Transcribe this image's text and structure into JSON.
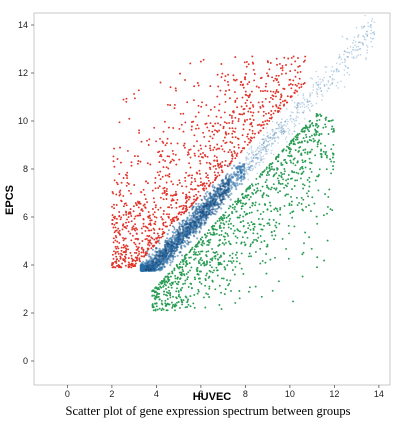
{
  "chart_data": {
    "type": "scatter",
    "title": "",
    "xlabel": "HUVEC",
    "ylabel": "EPCS",
    "xlim": [
      -1.5,
      14.5
    ],
    "ylim": [
      -1.0,
      14.5
    ],
    "xticks": [
      0,
      2,
      4,
      6,
      8,
      10,
      12,
      14
    ],
    "yticks": [
      0,
      2,
      4,
      6,
      8,
      10,
      12,
      14
    ],
    "grid": false,
    "legend": "none",
    "series": [
      {
        "color": "#e0352b",
        "description_points": [
          [
            2.0,
            3.95
          ],
          [
            2.5,
            5.5
          ],
          [
            3.0,
            7.2
          ],
          [
            3.5,
            8.6
          ],
          [
            3.6,
            10.0
          ],
          [
            4.5,
            11.5
          ],
          [
            5.0,
            11.9
          ],
          [
            6.0,
            11.4
          ],
          [
            7.0,
            12.0
          ],
          [
            8.7,
            12.5
          ],
          [
            9.5,
            12.3
          ],
          [
            10.5,
            11.5
          ],
          [
            4.0,
            6.5
          ],
          [
            5.0,
            7.5
          ],
          [
            6.0,
            8.5
          ],
          [
            7.0,
            9.5
          ],
          [
            8.0,
            10.2
          ],
          [
            9.0,
            10.8
          ]
        ]
      },
      {
        "color": "#2a6fa8",
        "description_points": [
          [
            3.2,
            3.8
          ],
          [
            4.0,
            4.5
          ],
          [
            5.0,
            5.6
          ],
          [
            6.0,
            6.5
          ],
          [
            7.0,
            7.6
          ],
          [
            8.0,
            8.5
          ],
          [
            9.0,
            9.6
          ],
          [
            10.0,
            10.5
          ],
          [
            11.0,
            11.5
          ],
          [
            12.0,
            12.4
          ],
          [
            13.5,
            13.5
          ]
        ]
      },
      {
        "color": "#2a9d55",
        "description_points": [
          [
            3.8,
            2.8
          ],
          [
            4.5,
            2.5
          ],
          [
            5.2,
            2.2
          ],
          [
            4.5,
            3.5
          ],
          [
            5.5,
            4.0
          ],
          [
            6.0,
            3.7
          ],
          [
            7.0,
            4.5
          ],
          [
            8.0,
            5.2
          ],
          [
            9.0,
            6.0
          ],
          [
            10.0,
            7.0
          ],
          [
            10.5,
            8.5
          ],
          [
            11.0,
            9.5
          ],
          [
            11.5,
            10.0
          ],
          [
            12.5,
            10.5
          ]
        ]
      }
    ],
    "caption": "Scatter plot of gene expression spectrum between groups"
  }
}
